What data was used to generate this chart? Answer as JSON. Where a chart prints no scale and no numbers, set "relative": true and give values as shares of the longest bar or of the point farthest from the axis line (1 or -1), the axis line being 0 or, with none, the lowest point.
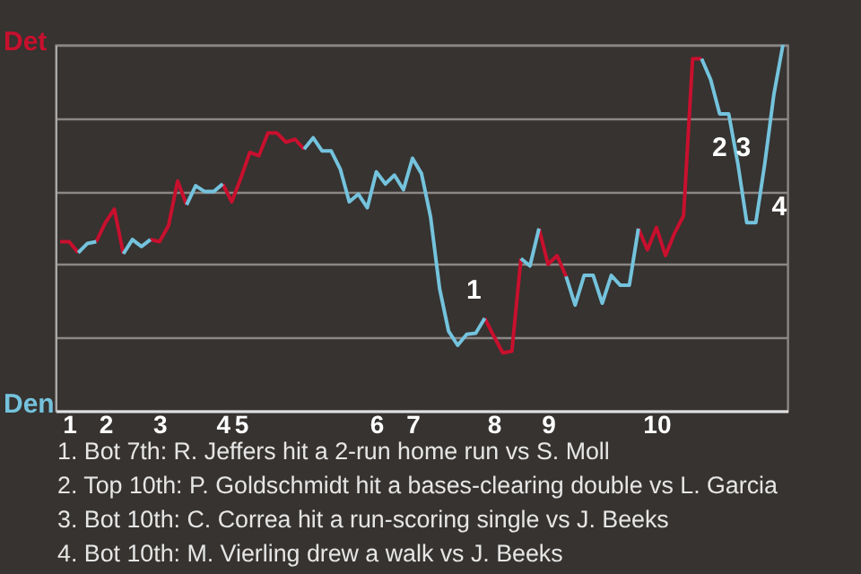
{
  "chart_data": {
    "type": "line",
    "relative": true,
    "categories": [
      null,
      "1",
      null,
      null,
      null,
      "2",
      null,
      null,
      null,
      null,
      null,
      "3",
      null,
      null,
      null,
      null,
      null,
      null,
      "4",
      null,
      "5",
      null,
      null,
      null,
      null,
      null,
      null,
      null,
      null,
      null,
      null,
      null,
      null,
      null,
      null,
      "6",
      null,
      null,
      null,
      "7",
      null,
      null,
      null,
      null,
      null,
      null,
      null,
      null,
      "8",
      null,
      null,
      null,
      null,
      null,
      "9",
      null,
      null,
      null,
      null,
      null,
      null,
      null,
      null,
      null,
      null,
      null,
      "10",
      null,
      null,
      null,
      null,
      null,
      null,
      null,
      null,
      null,
      null,
      null,
      null,
      null,
      null
    ],
    "series": [
      {
        "color": "#c8102e",
        "values": [
          0.462,
          0.462,
          0.432,
          null,
          0.462,
          0.514,
          0.551,
          0.429,
          null,
          null,
          0.468,
          0.462,
          0.506,
          0.628,
          0.563,
          null,
          null,
          null,
          0.62,
          0.571,
          0.636,
          0.706,
          0.697,
          0.759,
          0.759,
          0.734,
          0.742,
          0.715,
          null,
          null,
          null,
          null,
          null,
          null,
          null,
          null,
          null,
          null,
          null,
          null,
          null,
          null,
          null,
          null,
          null,
          null,
          null,
          0.253,
          0.204,
          0.158,
          0.163,
          0.416,
          null,
          0.498,
          0.4,
          0.424,
          0.367,
          null,
          null,
          null,
          null,
          null,
          null,
          null,
          0.498,
          0.44,
          0.501,
          0.424,
          0.485,
          0.533,
          0.962,
          0.962,
          null,
          null,
          null,
          null,
          null,
          null,
          null,
          null,
          null
        ]
      },
      {
        "color": "#74c3dd",
        "values": [
          null,
          null,
          0.432,
          0.457,
          0.462,
          null,
          null,
          0.429,
          0.468,
          0.449,
          0.468,
          null,
          null,
          null,
          0.563,
          0.615,
          0.599,
          0.599,
          0.62,
          null,
          null,
          null,
          null,
          null,
          null,
          null,
          null,
          0.715,
          0.746,
          0.71,
          0.71,
          0.661,
          0.571,
          0.592,
          0.555,
          0.653,
          0.62,
          0.644,
          0.604,
          0.69,
          0.648,
          0.53,
          0.334,
          0.217,
          0.179,
          0.209,
          0.212,
          0.253,
          null,
          null,
          null,
          0.416,
          0.396,
          0.498,
          null,
          null,
          0.367,
          0.289,
          0.37,
          0.37,
          0.294,
          0.37,
          0.343,
          0.343,
          0.498,
          null,
          null,
          null,
          null,
          null,
          null,
          0.962,
          0.905,
          0.811,
          0.811,
          0.677,
          0.514,
          0.514,
          0.677,
          0.865,
          1.0
        ]
      }
    ],
    "grid": "y",
    "annotations": [
      "Det",
      "Den",
      "1",
      "2",
      "3",
      "4",
      "1. Bot 7th: R. Jeffers hit a 2-run home run vs S. Moll",
      "2. Top 10th: P. Goldschmidt hit a bases-clearing double vs L. Garcia",
      "3. Bot 10th: C. Correa hit a run-scoring single vs J. Beeks",
      "4. Bot 10th: M. Vierling drew a walk vs J. Beeks"
    ]
  }
}
